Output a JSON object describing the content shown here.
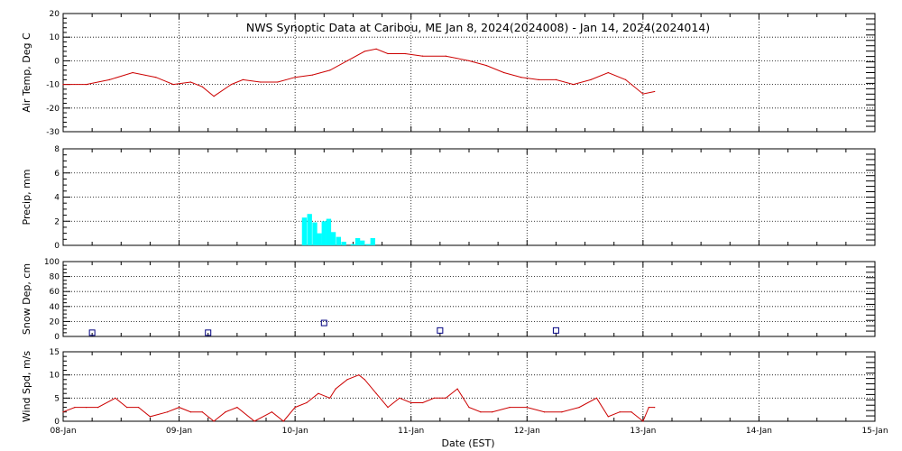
{
  "title": "NWS Synoptic Data at Caribou, ME   Jan  8, 2024(2024008) - Jan 14, 2024(2024014)",
  "xlabel": "Date (EST)",
  "x_ticks": [
    "08-Jan",
    "09-Jan",
    "10-Jan",
    "11-Jan",
    "12-Jan",
    "13-Jan",
    "14-Jan",
    "15-Jan"
  ],
  "x_range_days": [
    0,
    7
  ],
  "colors": {
    "temp_line": "#cc0000",
    "precip_bars": "#00ffff",
    "snow_markers": "#000080",
    "wind_line": "#cc0000",
    "grid": "#000000"
  },
  "chart_data": [
    {
      "type": "line",
      "ylabel": "Air Temp, Deg C",
      "ylim": [
        -30,
        20
      ],
      "y_ticks": [
        "-30",
        "-20",
        "-10",
        "0",
        "10",
        "20"
      ],
      "grid": true,
      "x": [
        0,
        0.2,
        0.4,
        0.6,
        0.8,
        0.95,
        1.1,
        1.2,
        1.3,
        1.45,
        1.55,
        1.7,
        1.85,
        2.0,
        2.15,
        2.3,
        2.45,
        2.6,
        2.7,
        2.8,
        2.95,
        3.1,
        3.3,
        3.5,
        3.65,
        3.8,
        3.95,
        4.1,
        4.25,
        4.4,
        4.55,
        4.7,
        4.85,
        5.0,
        5.1
      ],
      "values": [
        -10,
        -10,
        -8,
        -5,
        -7,
        -10,
        -9,
        -11,
        -15,
        -10,
        -8,
        -9,
        -9,
        -7,
        -6,
        -4,
        0,
        4,
        5,
        3,
        3,
        2,
        2,
        0,
        -2,
        -5,
        -7,
        -8,
        -8,
        -10,
        -8,
        -5,
        -8,
        -14,
        -13
      ]
    },
    {
      "type": "bar",
      "ylabel": "Precip, mm",
      "ylim": [
        0,
        8
      ],
      "y_ticks": [
        "0",
        "2",
        "4",
        "6",
        "8"
      ],
      "grid": true,
      "x": [
        2.08,
        2.125,
        2.17,
        2.21,
        2.25,
        2.29,
        2.33,
        2.375,
        2.42,
        2.5,
        2.54,
        2.58,
        2.63,
        2.67
      ],
      "values": [
        2.3,
        2.6,
        1.9,
        1.0,
        2.0,
        2.2,
        1.1,
        0.7,
        0.3,
        0.1,
        0.6,
        0.4,
        0.1,
        0.6
      ]
    },
    {
      "type": "scatter",
      "ylabel": "Snow Dep, cm",
      "ylim": [
        0,
        100
      ],
      "y_ticks": [
        "0",
        "20",
        "40",
        "60",
        "80",
        "100"
      ],
      "grid": true,
      "x": [
        0.25,
        1.25,
        2.25,
        3.25,
        4.25
      ],
      "values": [
        5,
        5,
        18,
        8,
        8
      ]
    },
    {
      "type": "line",
      "ylabel": "Wind Spd, m/s",
      "ylim": [
        0,
        15
      ],
      "y_ticks": [
        "0",
        "5",
        "10",
        "15"
      ],
      "grid": true,
      "x": [
        0,
        0.1,
        0.2,
        0.3,
        0.45,
        0.55,
        0.65,
        0.75,
        0.9,
        1.0,
        1.1,
        1.2,
        1.3,
        1.4,
        1.5,
        1.65,
        1.8,
        1.9,
        2.0,
        2.1,
        2.2,
        2.3,
        2.35,
        2.45,
        2.55,
        2.6,
        2.7,
        2.8,
        2.9,
        3.0,
        3.1,
        3.2,
        3.3,
        3.4,
        3.5,
        3.6,
        3.7,
        3.85,
        4.0,
        4.15,
        4.3,
        4.45,
        4.6,
        4.7,
        4.8,
        4.9,
        5.0,
        5.05,
        5.1
      ],
      "values": [
        2,
        3,
        3,
        3,
        5,
        3,
        3,
        1,
        2,
        3,
        2,
        2,
        0,
        2,
        3,
        0,
        2,
        0,
        3,
        4,
        6,
        5,
        7,
        9,
        10,
        9,
        6,
        3,
        5,
        4,
        4,
        5,
        5,
        7,
        3,
        2,
        2,
        3,
        3,
        2,
        2,
        3,
        5,
        1,
        2,
        2,
        0,
        3,
        3
      ]
    }
  ]
}
